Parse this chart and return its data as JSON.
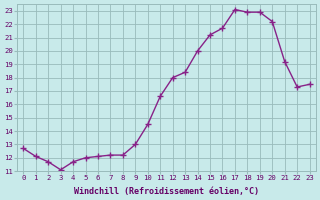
{
  "x": [
    0,
    1,
    2,
    3,
    4,
    5,
    6,
    7,
    8,
    9,
    10,
    11,
    12,
    13,
    14,
    15,
    16,
    17,
    18,
    19,
    20,
    21,
    22,
    23
  ],
  "y": [
    12.7,
    12.1,
    11.7,
    11.1,
    11.7,
    12.0,
    12.1,
    12.2,
    12.2,
    13.0,
    14.5,
    16.6,
    18.0,
    18.4,
    20.0,
    21.2,
    21.7,
    23.1,
    22.9,
    22.9,
    22.2,
    19.2,
    17.3,
    17.5
  ],
  "line_color": "#882288",
  "marker": "+",
  "markersize": 4,
  "markeredgewidth": 1.0,
  "linewidth": 1.0,
  "bg_color": "#c8eaea",
  "grid_color": "#99bbbb",
  "xlabel": "Windchill (Refroidissement éolien,°C)",
  "xlabel_color": "#660066",
  "tick_color": "#660066",
  "ylim": [
    11,
    23.5
  ],
  "xlim": [
    -0.5,
    23.5
  ],
  "yticks": [
    11,
    12,
    13,
    14,
    15,
    16,
    17,
    18,
    19,
    20,
    21,
    22,
    23
  ],
  "xticks": [
    0,
    1,
    2,
    3,
    4,
    5,
    6,
    7,
    8,
    9,
    10,
    11,
    12,
    13,
    14,
    15,
    16,
    17,
    18,
    19,
    20,
    21,
    22,
    23
  ]
}
